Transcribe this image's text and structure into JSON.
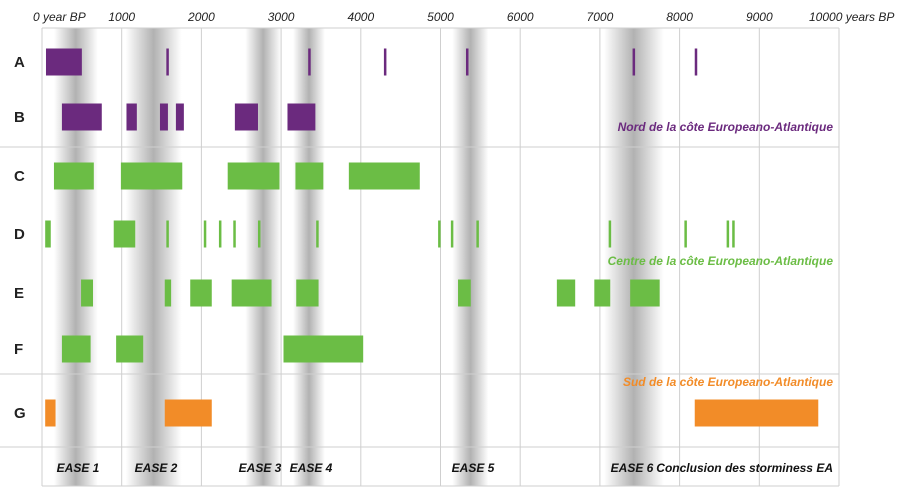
{
  "chart_data": {
    "type": "range-bar",
    "x_unit": "years BP",
    "xlim": [
      0,
      10000
    ],
    "x_ticks": [
      {
        "value": 0,
        "label": "0 year BP"
      },
      {
        "value": 1000,
        "label": "1000"
      },
      {
        "value": 2000,
        "label": "2000"
      },
      {
        "value": 3000,
        "label": "3000"
      },
      {
        "value": 4000,
        "label": "4000"
      },
      {
        "value": 5000,
        "label": "5000"
      },
      {
        "value": 6000,
        "label": "6000"
      },
      {
        "value": 7000,
        "label": "7000"
      },
      {
        "value": 8000,
        "label": "8000"
      },
      {
        "value": 9000,
        "label": "9000"
      },
      {
        "value": 10000,
        "label": "10000 years BP"
      }
    ],
    "colors": {
      "north": "#6b2a7e",
      "centre": "#6bbd45",
      "south": "#f28c28",
      "ease_band": "#a9a9a9",
      "grid": "#cfcfcf"
    },
    "ease_periods": [
      {
        "label": "EASE 1",
        "start": 150,
        "end": 700
      },
      {
        "label": "EASE 2",
        "start": 1050,
        "end": 1750
      },
      {
        "label": "EASE 3",
        "start": 2550,
        "end": 3000
      },
      {
        "label": "EASE 4",
        "start": 3150,
        "end": 3550
      },
      {
        "label": "EASE 5",
        "start": 5150,
        "end": 5600
      },
      {
        "label": "EASE 6",
        "start": 7050,
        "end": 7800
      }
    ],
    "extra_label": "Conclusion des storminess EA",
    "groups": [
      {
        "label": "Nord de la côte Europeano-Atlantique",
        "color": "north",
        "rows": [
          "A",
          "B"
        ]
      },
      {
        "label": "Centre de la côte Europeano-Atlantique",
        "color": "centre",
        "rows": [
          "C",
          "D",
          "E",
          "F"
        ]
      },
      {
        "label": "Sud de la côte Europeano-Atlantique",
        "color": "south",
        "rows": [
          "G"
        ]
      }
    ],
    "rows": [
      {
        "label": "A",
        "color": "north",
        "intervals": [
          [
            50,
            500
          ],
          [
            1560,
            1590
          ],
          [
            3340,
            3370
          ],
          [
            4290,
            4320
          ],
          [
            5320,
            5350
          ],
          [
            7410,
            7440
          ],
          [
            8190,
            8220
          ]
        ]
      },
      {
        "label": "B",
        "color": "north",
        "intervals": [
          [
            250,
            750
          ],
          [
            1060,
            1190
          ],
          [
            1480,
            1580
          ],
          [
            1680,
            1780
          ],
          [
            2420,
            2710
          ],
          [
            3080,
            3430
          ]
        ]
      },
      {
        "label": "C",
        "color": "centre",
        "intervals": [
          [
            150,
            650
          ],
          [
            990,
            1760
          ],
          [
            2330,
            2980
          ],
          [
            3180,
            3530
          ],
          [
            3850,
            4740
          ]
        ]
      },
      {
        "label": "D",
        "color": "centre",
        "intervals": [
          [
            40,
            110
          ],
          [
            900,
            1170
          ],
          [
            1560,
            1590
          ],
          [
            2030,
            2060
          ],
          [
            2220,
            2250
          ],
          [
            2400,
            2430
          ],
          [
            2710,
            2740
          ],
          [
            3440,
            3470
          ],
          [
            4970,
            5000
          ],
          [
            5130,
            5160
          ],
          [
            5450,
            5480
          ],
          [
            7110,
            7140
          ],
          [
            8060,
            8090
          ],
          [
            8590,
            8620
          ],
          [
            8660,
            8690
          ]
        ]
      },
      {
        "label": "E",
        "color": "centre",
        "intervals": [
          [
            490,
            640
          ],
          [
            1540,
            1620
          ],
          [
            1860,
            2130
          ],
          [
            2380,
            2880
          ],
          [
            3190,
            3470
          ],
          [
            5220,
            5380
          ],
          [
            6460,
            6690
          ],
          [
            6930,
            7130
          ],
          [
            7380,
            7750
          ]
        ]
      },
      {
        "label": "F",
        "color": "centre",
        "intervals": [
          [
            250,
            610
          ],
          [
            930,
            1270
          ],
          [
            3030,
            4030
          ]
        ]
      },
      {
        "label": "G",
        "color": "south",
        "intervals": [
          [
            40,
            170
          ],
          [
            1540,
            2130
          ],
          [
            8190,
            9740
          ]
        ]
      }
    ]
  }
}
